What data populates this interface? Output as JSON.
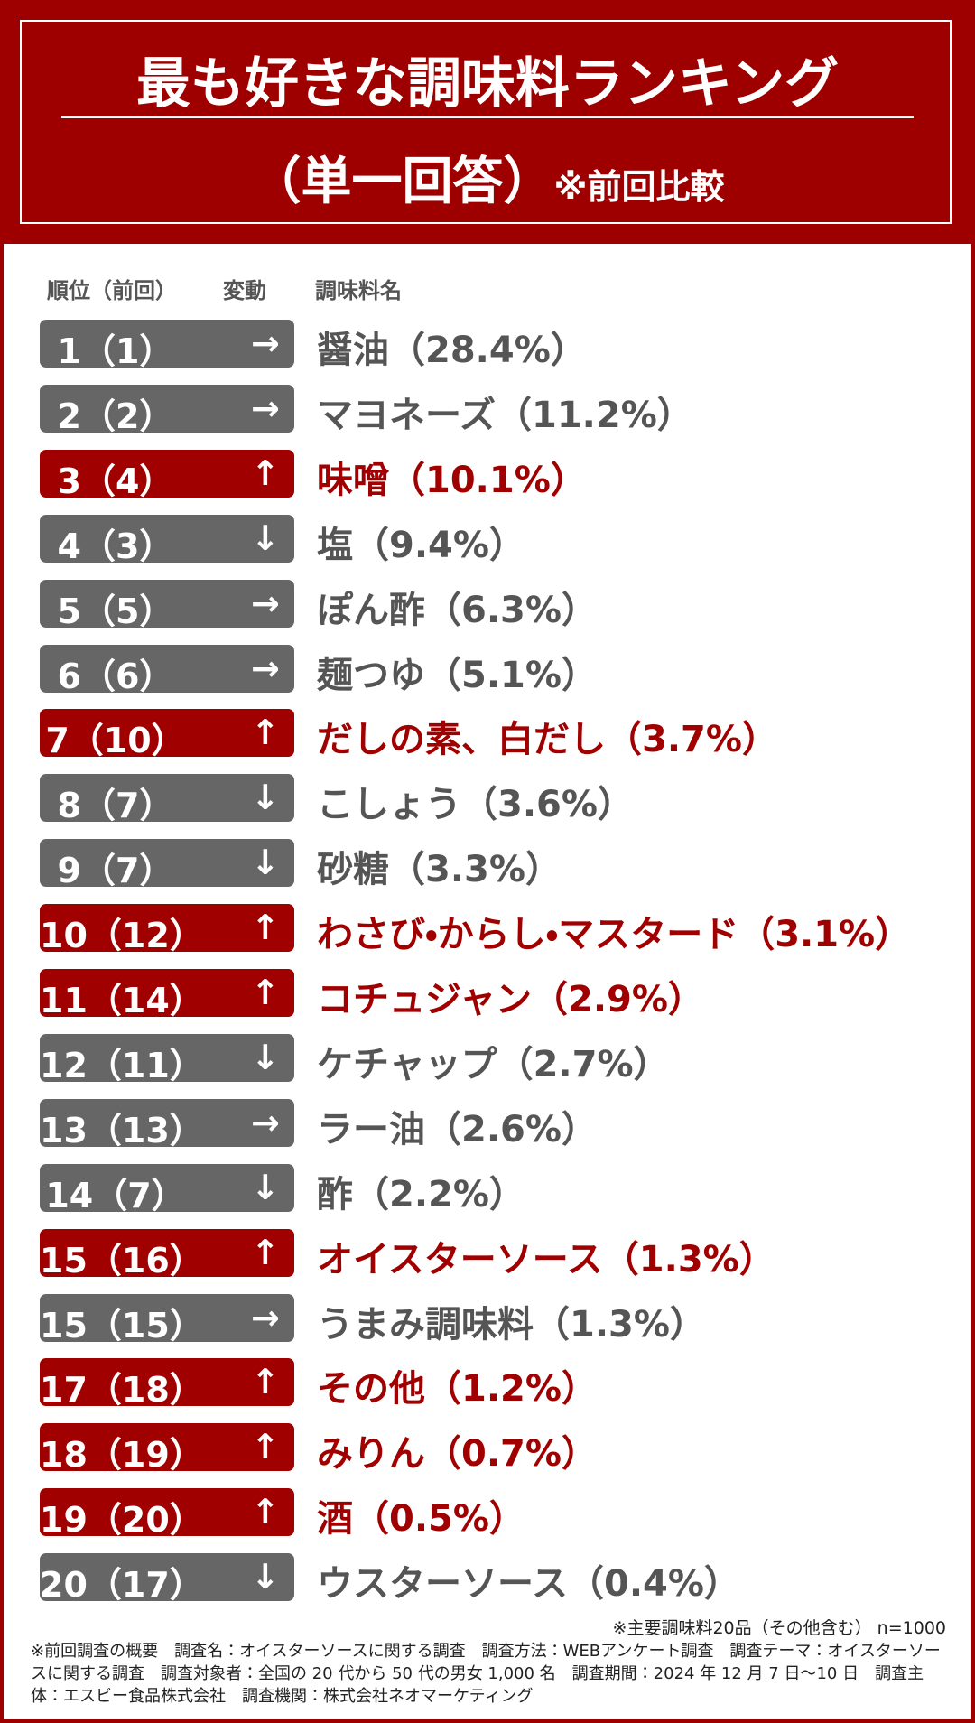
{
  "header": {
    "title": "最も好きな調味料ランキング",
    "subtitle": "（単一回答）",
    "subtitle_note": "※前回比較"
  },
  "table": {
    "columns": [
      "順位（前回）",
      "変動",
      "調味料名"
    ],
    "rows": [
      {
        "rank": "1（1）",
        "change": "→",
        "name": "醤油（28.4%）",
        "highlight": false
      },
      {
        "rank": "2（2）",
        "change": "→",
        "name": "マヨネーズ（11.2%）",
        "highlight": false
      },
      {
        "rank": "3（4）",
        "change": "↑",
        "name": "味噌（10.1%）",
        "highlight": true
      },
      {
        "rank": "4（3）",
        "change": "↓",
        "name": "塩（9.4%）",
        "highlight": false
      },
      {
        "rank": "5（5）",
        "change": "→",
        "name": "ぽん酢（6.3%）",
        "highlight": false
      },
      {
        "rank": "6（6）",
        "change": "→",
        "name": "麺つゆ（5.1%）",
        "highlight": false
      },
      {
        "rank": "7（10）",
        "change": "↑",
        "name": "だしの素、白だし（3.7%）",
        "highlight": true
      },
      {
        "rank": "8（7）",
        "change": "↓",
        "name": "こしょう（3.6%）",
        "highlight": false
      },
      {
        "rank": "9（7）",
        "change": "↓",
        "name": "砂糖（3.3%）",
        "highlight": false
      },
      {
        "rank": "10（12）",
        "change": "↑",
        "name": "わさび・からし・マスタード（3.1%）",
        "highlight": true
      },
      {
        "rank": "11（14）",
        "change": "↑",
        "name": "コチュジャン（2.9%）",
        "highlight": true
      },
      {
        "rank": "12（11）",
        "change": "↓",
        "name": "ケチャップ（2.7%）",
        "highlight": false
      },
      {
        "rank": "13（13）",
        "change": "→",
        "name": "ラー油（2.6%）",
        "highlight": false
      },
      {
        "rank": "14（7）",
        "change": "↓",
        "name": "酢（2.2%）",
        "highlight": false
      },
      {
        "rank": "15（16）",
        "change": "↑",
        "name": "オイスターソース（1.3%）",
        "highlight": true
      },
      {
        "rank": "15（15）",
        "change": "→",
        "name": "うまみ調味料（1.3%）",
        "highlight": false
      },
      {
        "rank": "17（18）",
        "change": "↑",
        "name": "その他（1.2%）",
        "highlight": true
      },
      {
        "rank": "18（19）",
        "change": "↑",
        "name": "みりん（0.7%）",
        "highlight": true
      },
      {
        "rank": "19（20）",
        "change": "↑",
        "name": "酒（0.5%）",
        "highlight": true
      },
      {
        "rank": "20（17）",
        "change": "↓",
        "name": "ウスターソース（0.4%）",
        "highlight": false
      }
    ]
  },
  "footer": {
    "note": "※主要調味料20品（その他含む） n=1000",
    "survey": "※前回調査の概要　調査名：オイスターソースに関する調査　調査方法：WEBアンケート調査　調査テーマ：オイスターソースに関する調査　調査対象者：全国の 20 代から 50 代の男女 1,000 名　調査期間：2024 年 12 月 7 日～10 日　調査主体：エスビー食品株式会社　調査機関：株式会社ネオマーケティング"
  }
}
